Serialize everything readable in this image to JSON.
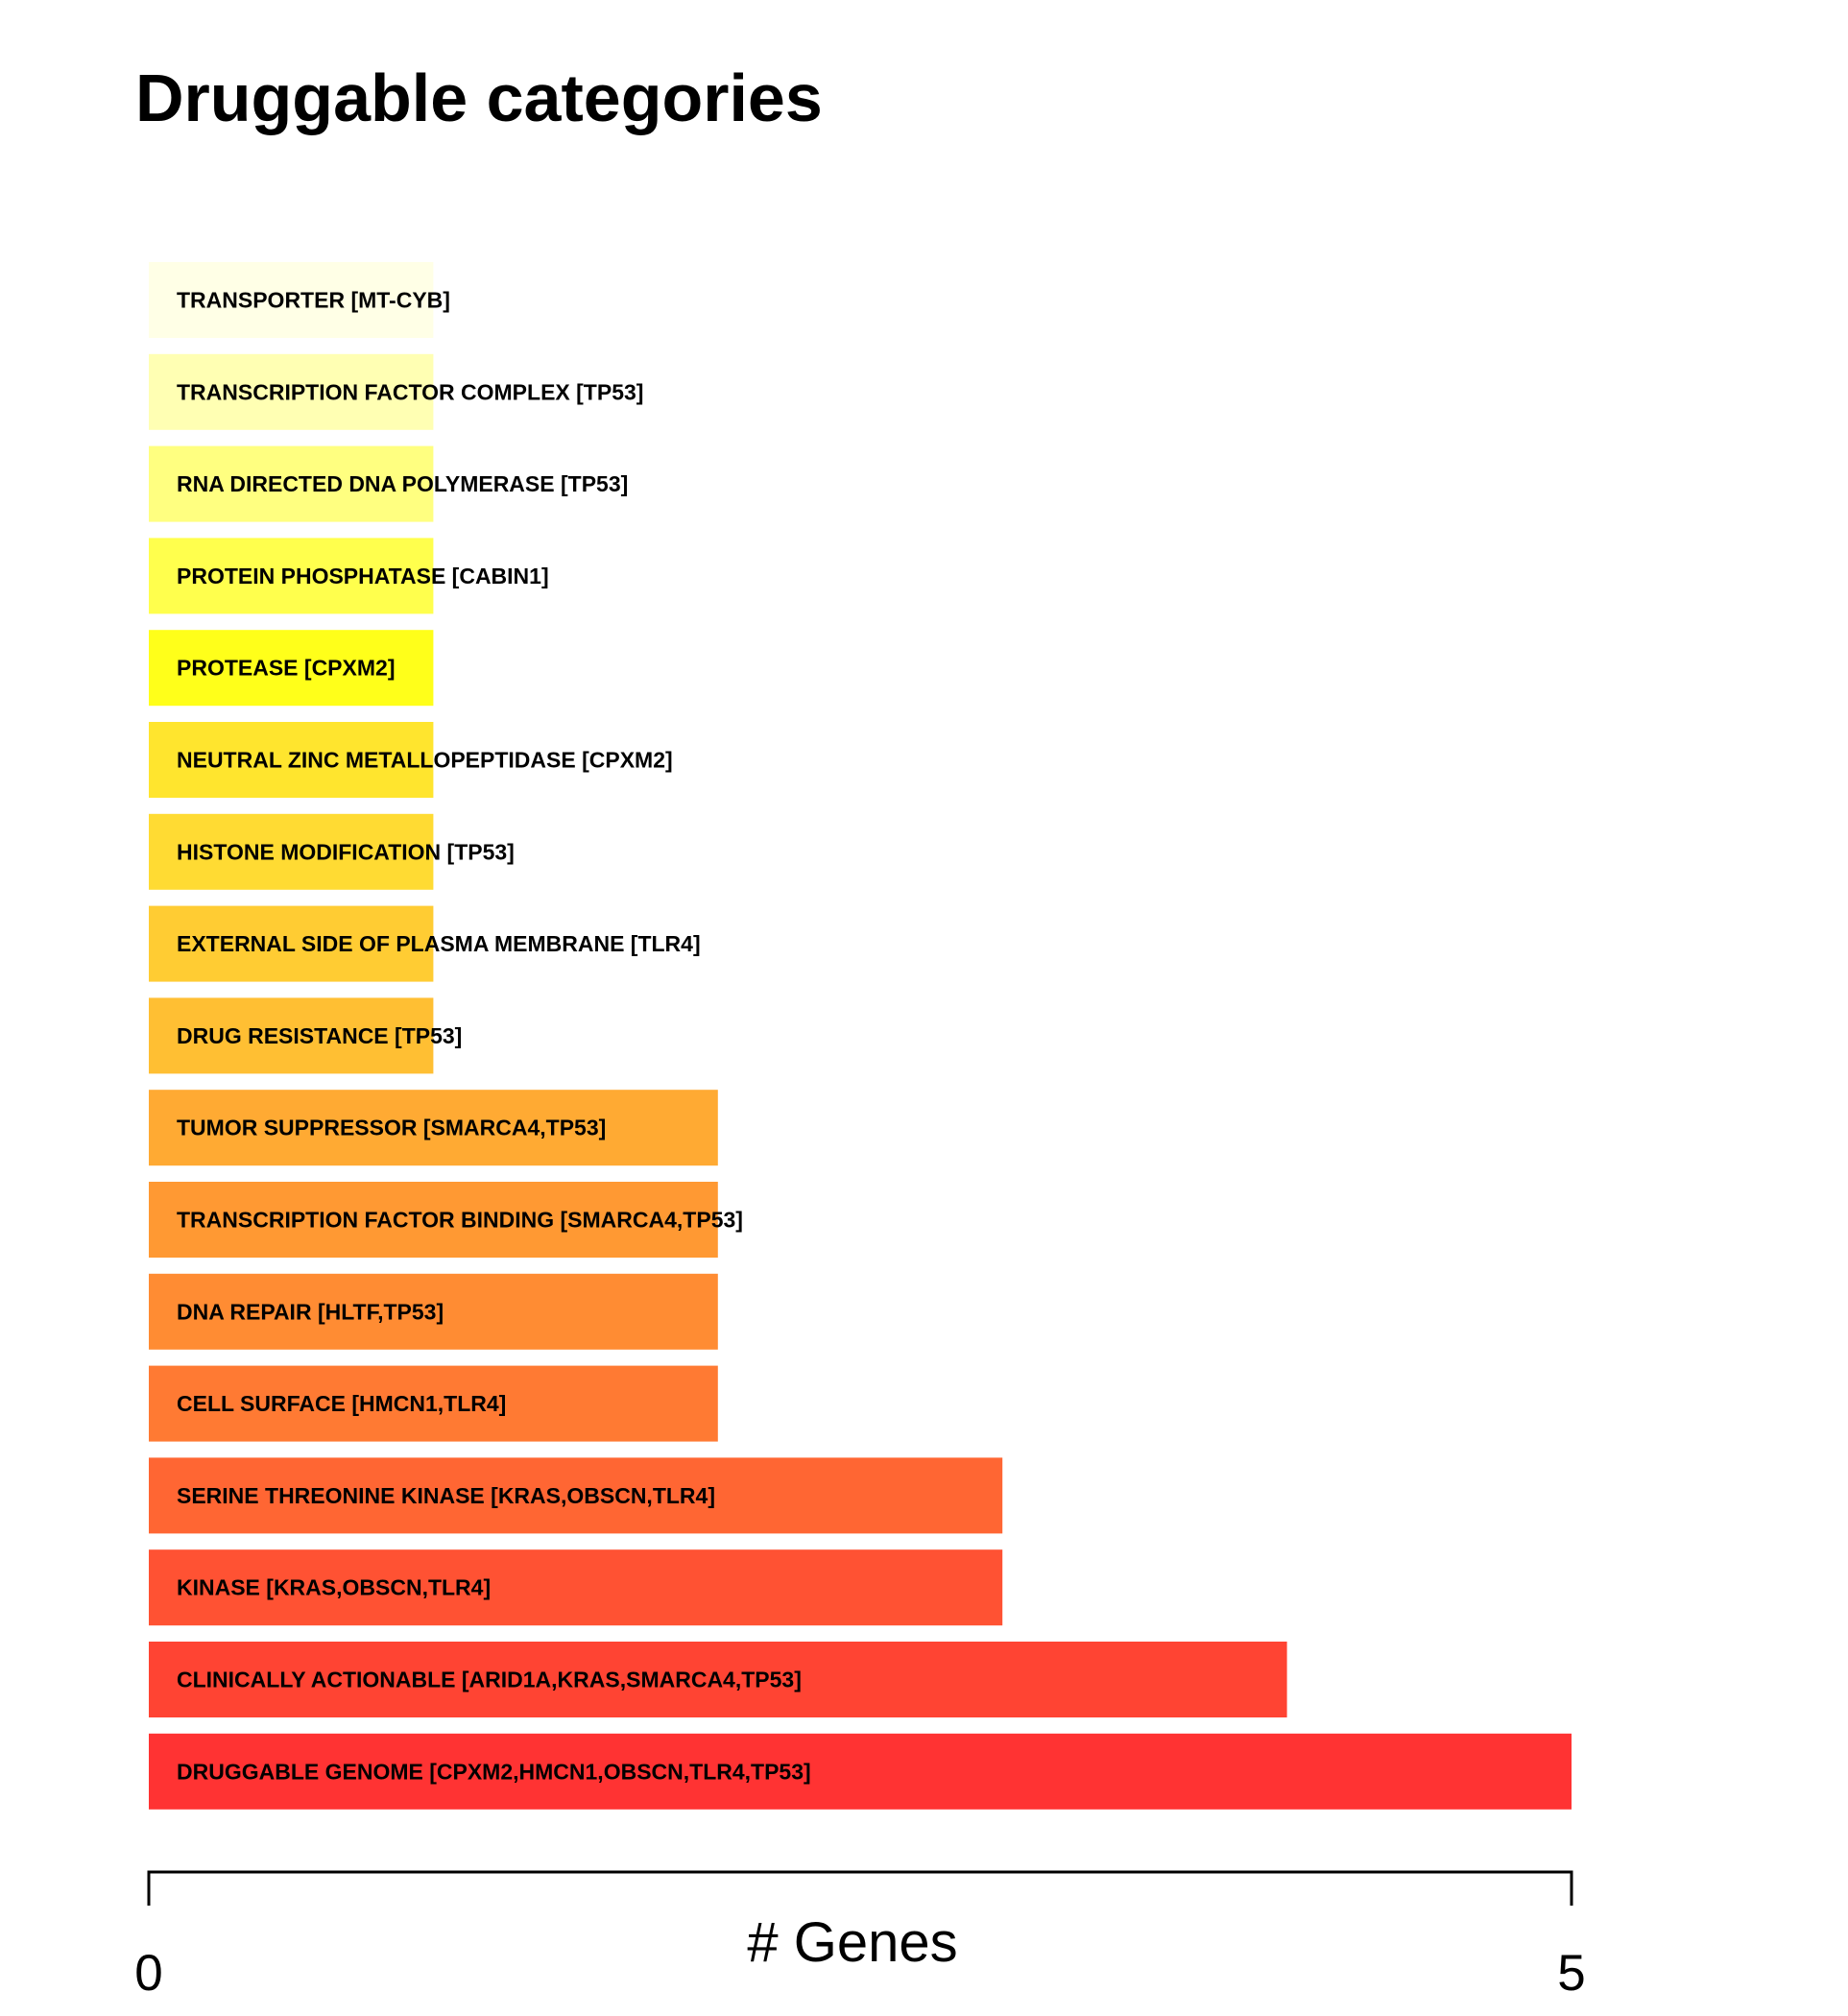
{
  "chart_data": {
    "type": "bar",
    "orientation": "horizontal",
    "title": "Druggable categories",
    "xlabel": "# Genes",
    "ylabel": "",
    "xlim": [
      0,
      5
    ],
    "xticks": [
      "0",
      "5"
    ],
    "grid": false,
    "categories": [
      "TRANSPORTER [MT-CYB]",
      "TRANSCRIPTION FACTOR COMPLEX [TP53]",
      "RNA DIRECTED DNA POLYMERASE [TP53]",
      "PROTEIN PHOSPHATASE [CABIN1]",
      "PROTEASE [CPXM2]",
      "NEUTRAL ZINC METALLOPEPTIDASE [CPXM2]",
      "HISTONE MODIFICATION [TP53]",
      "EXTERNAL SIDE OF PLASMA MEMBRANE [TLR4]",
      "DRUG RESISTANCE [TP53]",
      "TUMOR SUPPRESSOR [SMARCA4,TP53]",
      "TRANSCRIPTION FACTOR BINDING [SMARCA4,TP53]",
      "DNA REPAIR [HLTF,TP53]",
      "CELL SURFACE [HMCN1,TLR4]",
      "SERINE THREONINE KINASE [KRAS,OBSCN,TLR4]",
      "KINASE [KRAS,OBSCN,TLR4]",
      "CLINICALLY ACTIONABLE [ARID1A,KRAS,SMARCA4,TP53]",
      "DRUGGABLE GENOME [CPXM2,HMCN1,OBSCN,TLR4,TP53]"
    ],
    "values": [
      1,
      1,
      1,
      1,
      1,
      1,
      1,
      1,
      1,
      2,
      2,
      2,
      2,
      3,
      3,
      4,
      5
    ],
    "colors": [
      "#FFFFE6",
      "#FFFFB3",
      "#FFFF80",
      "#FFFF4D",
      "#FFFF1A",
      "#FFE52E",
      "#FFDB33",
      "#FFCC33",
      "#FFBF33",
      "#FFAA33",
      "#FF9933",
      "#FF8C33",
      "#FF7A33",
      "#FF6633",
      "#FF5233",
      "#FF4433",
      "#FF3333"
    ]
  }
}
